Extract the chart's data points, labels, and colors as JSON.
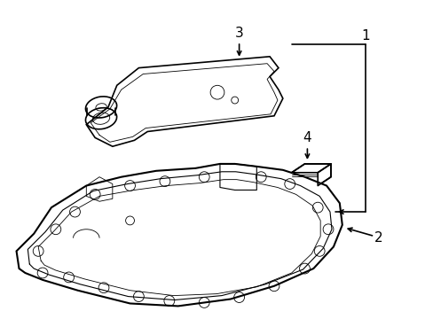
{
  "bg_color": "#ffffff",
  "line_color": "#000000",
  "fig_width": 4.89,
  "fig_height": 3.6,
  "dpi": 100,
  "label_fontsize": 11
}
